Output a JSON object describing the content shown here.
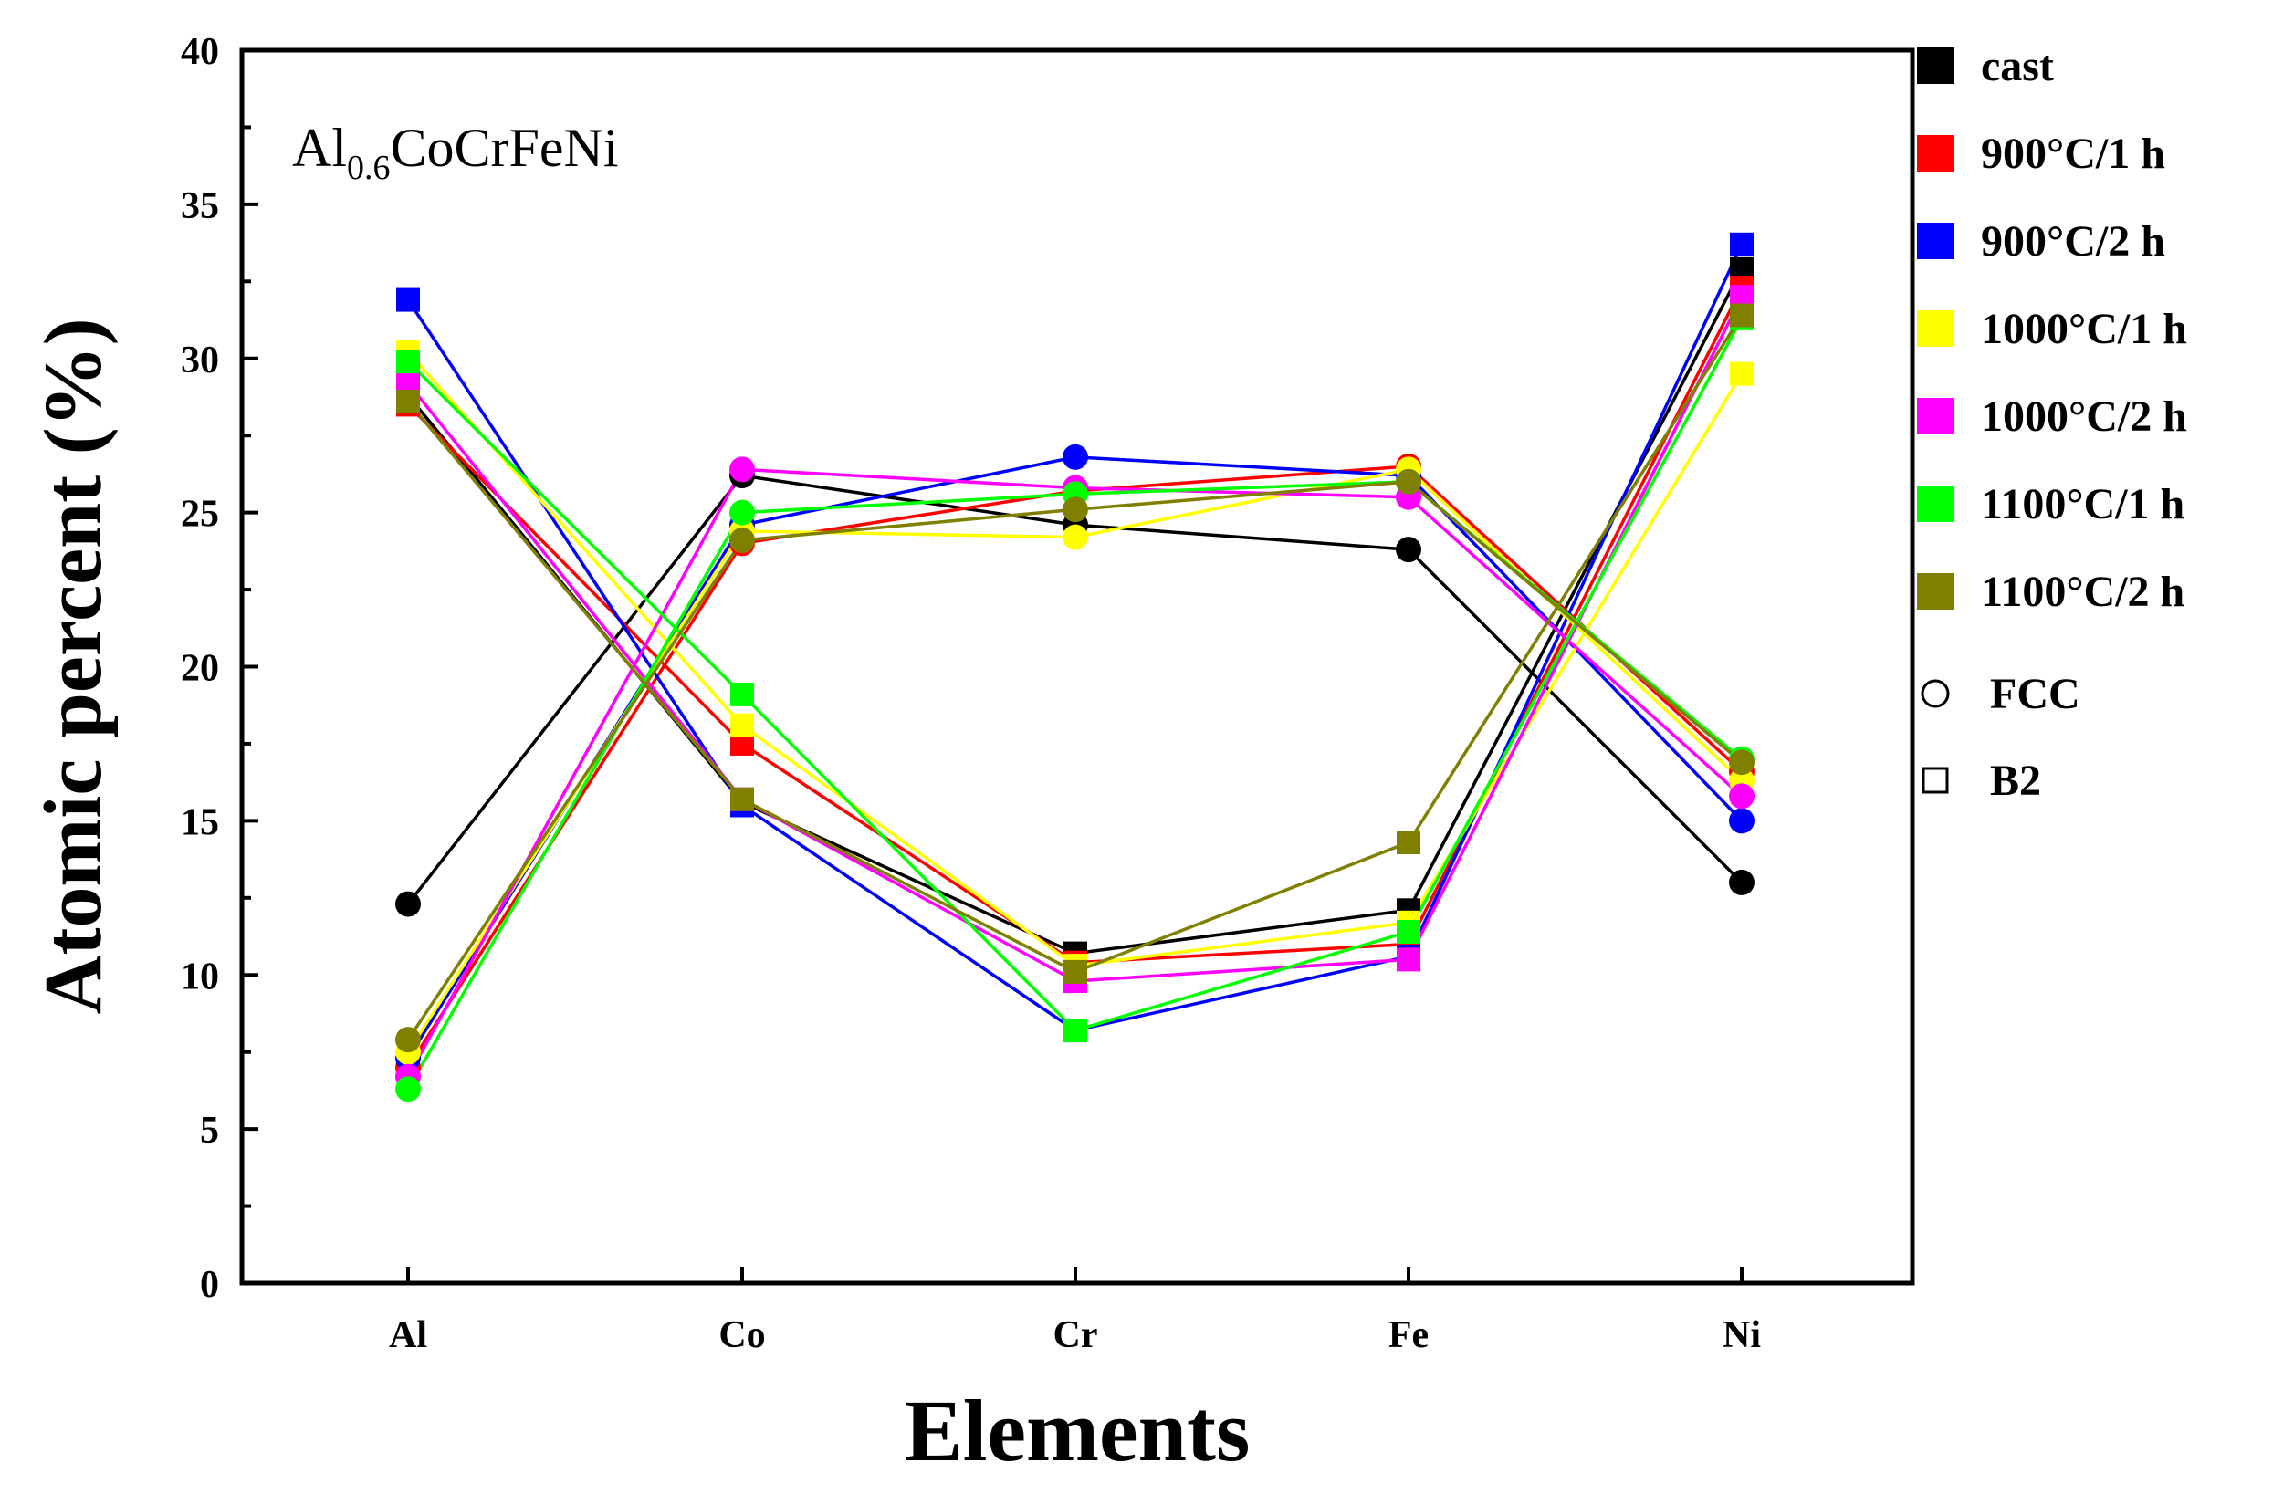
{
  "chart_data": {
    "type": "line",
    "annotation": {
      "main": "Al",
      "sub": "0.6",
      "rest": "CoCrFeNi"
    },
    "xlabel": "Elements",
    "ylabel": "Atomic percent (%)",
    "categories": [
      "Al",
      "Co",
      "Cr",
      "Fe",
      "Ni"
    ],
    "ylim": [
      0,
      40
    ],
    "yticks": [
      "0",
      "5",
      "10",
      "15",
      "20",
      "25",
      "30",
      "35",
      "40"
    ],
    "series": [
      {
        "name": "cast",
        "color": "#000000",
        "fcc": [
          12.3,
          26.2,
          24.6,
          23.8,
          13.0
        ],
        "b2": [
          28.8,
          15.6,
          10.7,
          12.1,
          32.9
        ]
      },
      {
        "name": "900°C/1 h",
        "color": "#ff0000",
        "fcc": [
          7.0,
          24.0,
          25.7,
          26.5,
          16.6
        ],
        "b2": [
          28.5,
          17.5,
          10.4,
          11.0,
          32.3
        ]
      },
      {
        "name": "900°C/2 h",
        "color": "#0000ff",
        "fcc": [
          7.3,
          24.6,
          26.8,
          26.2,
          15.0
        ],
        "b2": [
          31.9,
          15.5,
          8.2,
          10.6,
          33.7
        ]
      },
      {
        "name": "1000°C/1 h",
        "color": "#ffff00",
        "fcc": [
          7.5,
          24.4,
          24.2,
          26.4,
          16.3
        ],
        "b2": [
          30.2,
          18.1,
          10.3,
          11.7,
          29.5
        ]
      },
      {
        "name": "1000°C/2 h",
        "color": "#ff00ff",
        "fcc": [
          6.7,
          26.4,
          25.8,
          25.5,
          15.8
        ],
        "b2": [
          29.2,
          15.7,
          9.8,
          10.5,
          32.0
        ]
      },
      {
        "name": "1100°C/1 h",
        "color": "#00ff00",
        "fcc": [
          6.3,
          25.0,
          25.6,
          26.0,
          17.0
        ],
        "b2": [
          29.9,
          19.1,
          8.2,
          11.4,
          31.3
        ]
      },
      {
        "name": "1100°C/2 h",
        "color": "#808000",
        "fcc": [
          7.9,
          24.1,
          25.1,
          26.0,
          16.9
        ],
        "b2": [
          28.6,
          15.7,
          10.1,
          14.3,
          31.4
        ]
      }
    ],
    "marker_legend": [
      {
        "name": "FCC",
        "shape": "circle"
      },
      {
        "name": "B2",
        "shape": "square"
      }
    ]
  }
}
